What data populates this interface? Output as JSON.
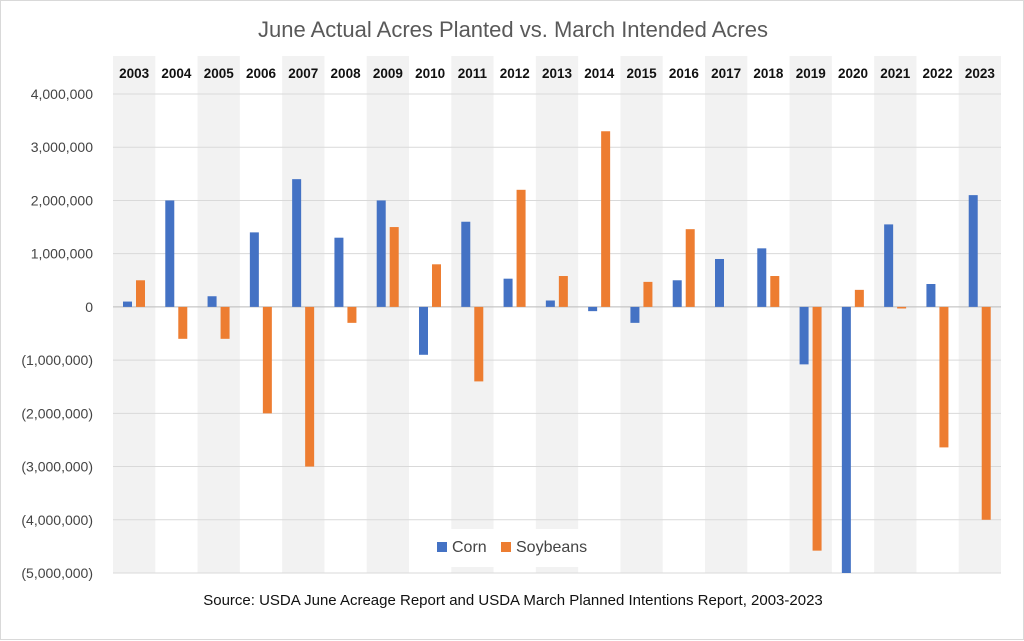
{
  "chart_data": {
    "type": "bar",
    "title": "June Actual Acres Planted vs. March Intended Acres",
    "source": "Source: USDA June Acreage Report and USDA March Planned Intentions Report, 2003-2023",
    "categories": [
      "2003",
      "2004",
      "2005",
      "2006",
      "2007",
      "2008",
      "2009",
      "2010",
      "2011",
      "2012",
      "2013",
      "2014",
      "2015",
      "2016",
      "2017",
      "2018",
      "2019",
      "2020",
      "2021",
      "2022",
      "2023"
    ],
    "series": [
      {
        "name": "Corn",
        "color": "#4472C4",
        "values": [
          100000,
          2000000,
          200000,
          1400000,
          2400000,
          1300000,
          2000000,
          -900000,
          1600000,
          530000,
          120000,
          -80000,
          -300000,
          500000,
          900000,
          1100000,
          -1080000,
          -5000000,
          1550000,
          430000,
          2100000
        ]
      },
      {
        "name": "Soybeans",
        "color": "#ED7D31",
        "values": [
          500000,
          -600000,
          -600000,
          -2000000,
          -3000000,
          -300000,
          1500000,
          800000,
          -1400000,
          2200000,
          580000,
          3300000,
          470000,
          1460000,
          0,
          580000,
          -4580000,
          320000,
          -30000,
          -2640000,
          -4000000
        ]
      }
    ],
    "ylim": [
      -5000000,
      4000000
    ],
    "yticks": [
      4000000,
      3000000,
      2000000,
      1000000,
      0,
      -1000000,
      -2000000,
      -3000000,
      -4000000,
      -5000000
    ],
    "ytick_labels": [
      "4,000,000",
      "3,000,000",
      "2,000,000",
      "1,000,000",
      "0",
      "(1,000,000)",
      "(2,000,000)",
      "(3,000,000)",
      "(4,000,000)",
      "(5,000,000)"
    ],
    "legend_position": "bottom-center",
    "band_color": "#f2f2f2"
  }
}
